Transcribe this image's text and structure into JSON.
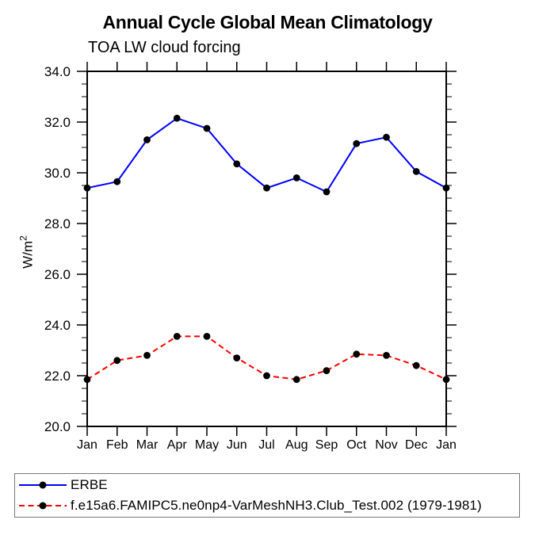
{
  "title": "Annual Cycle Global Mean Climatology",
  "subtitle": "TOA LW cloud forcing",
  "y_axis": {
    "label_base": "W/m",
    "label_exp": "2"
  },
  "legend": {
    "items": [
      {
        "label": "ERBE",
        "color": "#0000ff",
        "style": "solid"
      },
      {
        "label": "f.e15a6.FAMIPC5.ne0np4-VarMeshNH3.Club_Test.002 (1979-1981)",
        "color": "#ff0000",
        "style": "dashed"
      }
    ]
  },
  "chart_data": {
    "type": "line",
    "title": "Annual Cycle Global Mean Climatology",
    "subtitle": "TOA LW cloud forcing",
    "ylabel": "W/m²",
    "xlabel": "",
    "categories": [
      "Jan",
      "Feb",
      "Mar",
      "Apr",
      "May",
      "Jun",
      "Jul",
      "Aug",
      "Sep",
      "Oct",
      "Nov",
      "Dec",
      "Jan"
    ],
    "series": [
      {
        "name": "ERBE",
        "color": "#0000ff",
        "style": "solid",
        "marker": "circle",
        "marker_color": "#000000",
        "values": [
          29.4,
          29.65,
          31.3,
          32.15,
          31.75,
          30.35,
          29.4,
          29.8,
          29.25,
          31.15,
          31.4,
          30.05,
          29.4
        ]
      },
      {
        "name": "f.e15a6.FAMIPC5.ne0np4-VarMeshNH3.Club_Test.002 (1979-1981)",
        "color": "#ff0000",
        "style": "dashed",
        "marker": "circle",
        "marker_color": "#000000",
        "values": [
          21.85,
          22.6,
          22.8,
          23.55,
          23.55,
          22.7,
          22.0,
          21.85,
          22.2,
          22.85,
          22.8,
          22.4,
          21.85
        ]
      }
    ],
    "ylim": [
      20.0,
      34.0
    ],
    "yticks": [
      {
        "value": 20.0,
        "label": "20.0"
      },
      {
        "value": 22.0,
        "label": "22.0"
      },
      {
        "value": 24.0,
        "label": "24.0"
      },
      {
        "value": 26.0,
        "label": "26.0"
      },
      {
        "value": 28.0,
        "label": "28.0"
      },
      {
        "value": 30.0,
        "label": "30.0"
      },
      {
        "value": 32.0,
        "label": "32.0"
      },
      {
        "value": 34.0,
        "label": "34.0"
      }
    ],
    "ytick_step": 2.0,
    "yminor_step": 0.5,
    "grid": false,
    "legend_position": "bottom"
  }
}
